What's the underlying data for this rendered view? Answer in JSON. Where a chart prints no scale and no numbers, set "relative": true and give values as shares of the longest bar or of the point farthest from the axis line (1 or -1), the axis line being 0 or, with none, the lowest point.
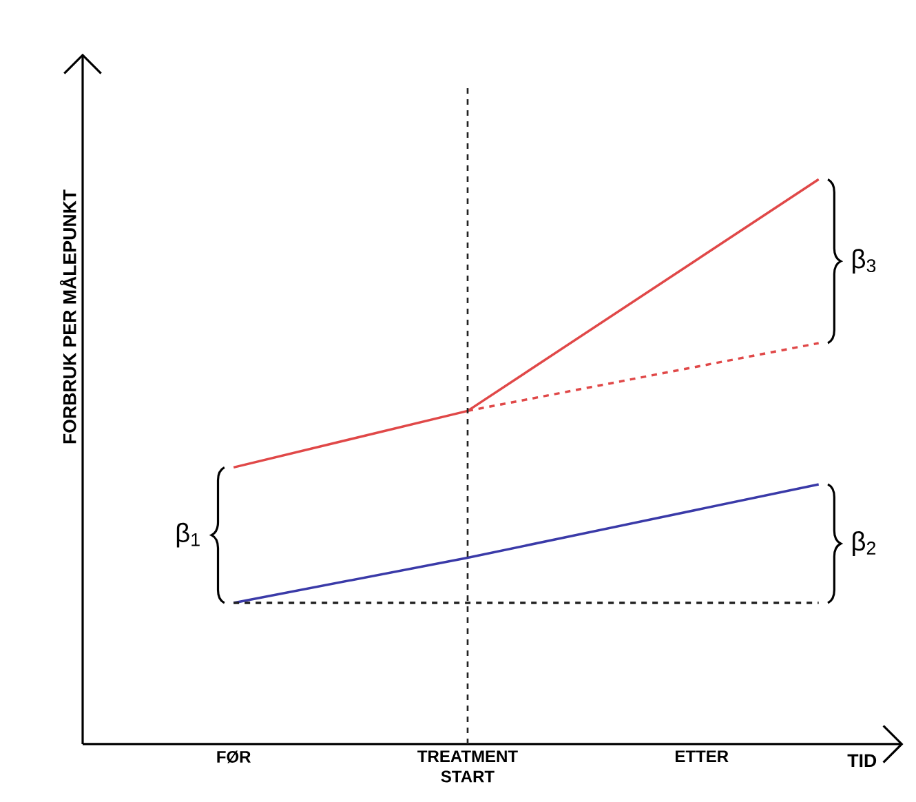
{
  "chart_data": {
    "type": "line",
    "relative": true,
    "xlabel": "TID",
    "ylabel": "FORBRUK PER MÅLEPUNKT",
    "categories": [
      "FØR",
      null,
      "TREATMENT START",
      null,
      "ETTER",
      null
    ],
    "series": [
      {
        "color": "#e04848",
        "line_style": "solid",
        "values": [
          0.49,
          null,
          0.59,
          null,
          null,
          1.0
        ]
      },
      {
        "color": "#e04848",
        "line_style": "dashed",
        "values": [
          null,
          null,
          0.59,
          null,
          null,
          0.71
        ]
      },
      {
        "color": "#3a3aa8",
        "line_style": "solid",
        "values": [
          0.25,
          null,
          0.33,
          null,
          null,
          0.46
        ]
      },
      {
        "color": "#222222",
        "line_style": "dashed",
        "values": [
          0.25,
          null,
          null,
          null,
          null,
          0.25
        ]
      }
    ],
    "ref_lines": [
      {
        "axis": "x",
        "value": "TREATMENT START",
        "line_style": "dashed",
        "color": "#222222"
      }
    ],
    "annotations": [
      "β$_{1}$",
      "β$_{2}$",
      "β$_{3}$"
    ],
    "marker": "none",
    "grid": false
  }
}
